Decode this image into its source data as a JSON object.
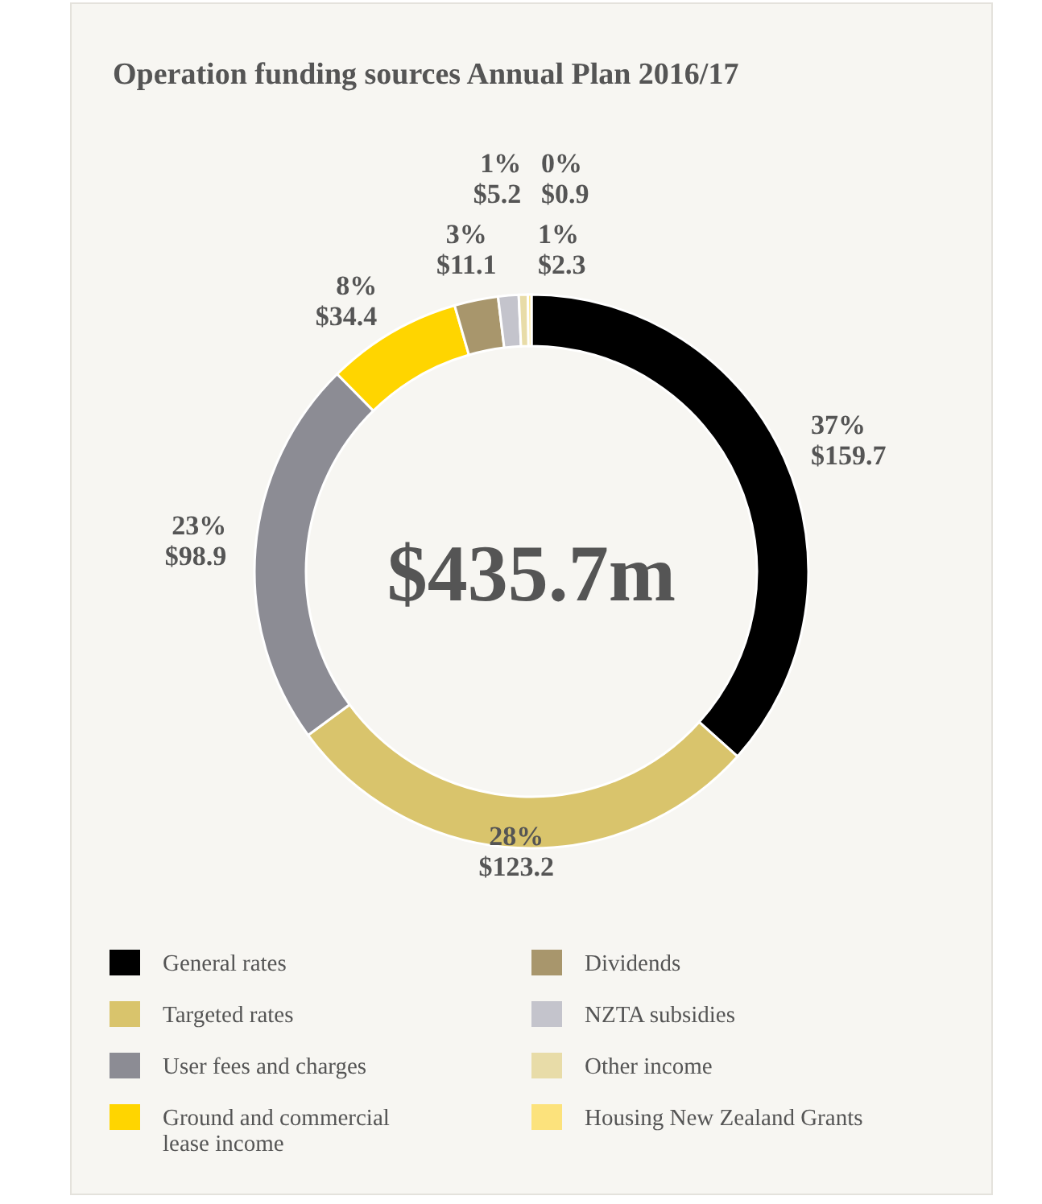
{
  "chart_data": {
    "type": "donut",
    "title": "Operation funding sources Annual Plan 2016/17",
    "categories": [
      "General rates",
      "Targeted rates",
      "User fees and charges",
      "Ground and commercial lease income",
      "Dividends",
      "NZTA subsidies",
      "Other income",
      "Housing New Zealand Grants"
    ],
    "values": [
      159.7,
      123.2,
      98.9,
      34.4,
      11.1,
      5.2,
      2.3,
      0.9
    ],
    "colors": [
      "#000000",
      "#d9c46c",
      "#8c8c94",
      "#ffd500",
      "#a8966c",
      "#c4c4cc",
      "#e8dca8",
      "#fce27c"
    ],
    "value_labels": [
      "37% $159.7",
      "28% $123.2",
      "23% $98.9",
      "8% $34.4",
      "3% $11.1",
      "1% $5.2",
      "1% $2.3",
      "0% $0.9"
    ],
    "annotations": [
      "$435.7m"
    ],
    "legend": "bottom"
  }
}
